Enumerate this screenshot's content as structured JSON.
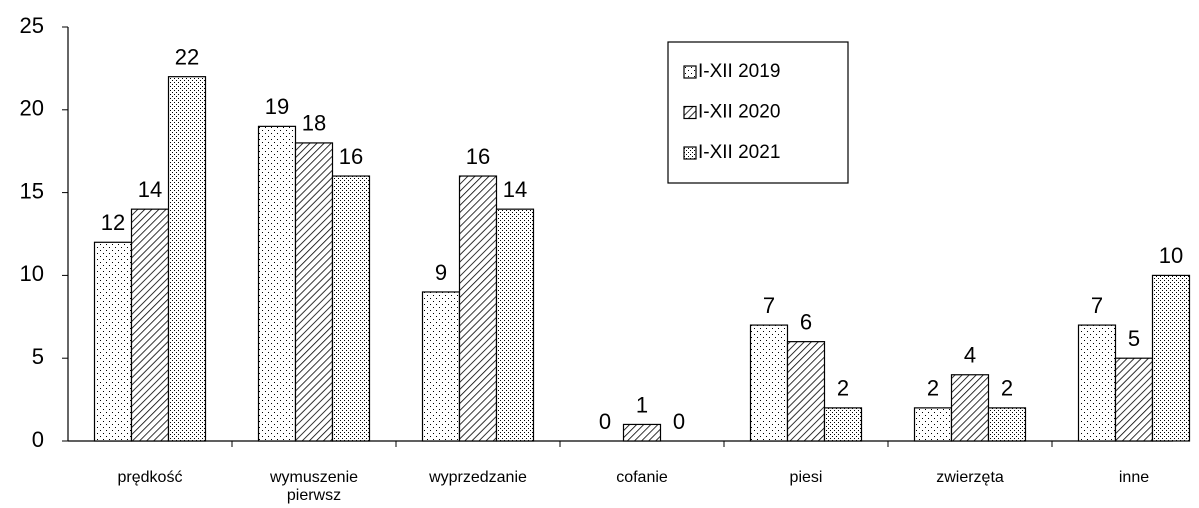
{
  "chart_data": {
    "type": "bar",
    "categories": [
      "prędkość",
      "wymuszenie pierwsz",
      "wyprzedzanie",
      "cofanie",
      "piesi",
      "zwierzęta",
      "inne"
    ],
    "series": [
      {
        "name": "I-XII 2019",
        "color": "#000000",
        "pattern": "sparse-dots",
        "values": [
          12,
          19,
          9,
          0,
          7,
          2,
          7
        ]
      },
      {
        "name": "I-XII 2020",
        "color": "#000000",
        "pattern": "hatch",
        "values": [
          14,
          18,
          16,
          1,
          6,
          4,
          5
        ]
      },
      {
        "name": "I-XII 2021",
        "color": "#000000",
        "pattern": "dense-dots",
        "values": [
          22,
          16,
          14,
          0,
          2,
          2,
          10
        ]
      }
    ],
    "ylim": [
      0,
      25
    ],
    "yticks": [
      0,
      5,
      10,
      15,
      20,
      25
    ],
    "grid": false,
    "legend": "top-right"
  }
}
